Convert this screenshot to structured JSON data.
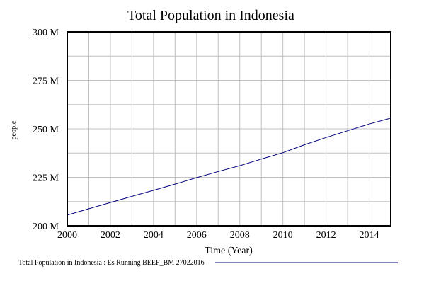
{
  "chart_data": {
    "type": "line",
    "title": "Total Population in Indonesia",
    "xlabel": "Time (Year)",
    "ylabel": "people",
    "xlim": [
      2000,
      2015
    ],
    "ylim": [
      200000000,
      300000000
    ],
    "x_ticks": [
      2000,
      2002,
      2004,
      2006,
      2008,
      2010,
      2012,
      2014
    ],
    "x_tick_labels": [
      "2000",
      "2002",
      "2004",
      "2006",
      "2008",
      "2010",
      "2012",
      "2014"
    ],
    "y_ticks": [
      200000000,
      225000000,
      250000000,
      275000000,
      300000000
    ],
    "y_tick_labels": [
      "200 M",
      "225 M",
      "250 M",
      "275 M",
      "300 M"
    ],
    "grid": true,
    "legend_position": "bottom",
    "series": [
      {
        "name": "Total Population in Indonesia : Es Running BEEF_BM 27022016",
        "color": "#00007f",
        "x": [
          2000,
          2001,
          2002,
          2003,
          2004,
          2005,
          2006,
          2007,
          2008,
          2009,
          2010,
          2011,
          2012,
          2013,
          2014,
          2015
        ],
        "y": [
          205500000,
          208800000,
          212000000,
          215200000,
          218300000,
          221500000,
          224800000,
          228000000,
          231000000,
          234400000,
          237700000,
          241800000,
          245500000,
          249000000,
          252500000,
          255500000
        ]
      }
    ]
  }
}
